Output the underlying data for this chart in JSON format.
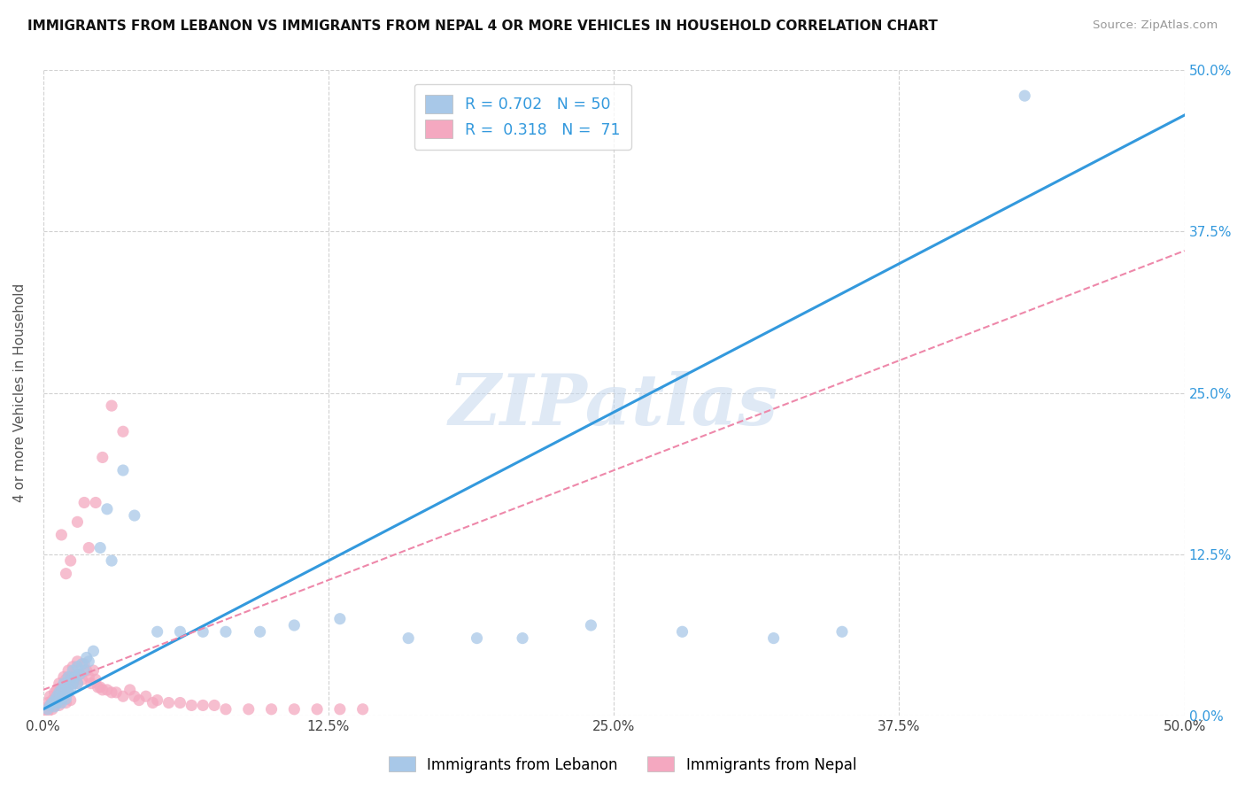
{
  "title": "IMMIGRANTS FROM LEBANON VS IMMIGRANTS FROM NEPAL 4 OR MORE VEHICLES IN HOUSEHOLD CORRELATION CHART",
  "source": "Source: ZipAtlas.com",
  "ylabel": "4 or more Vehicles in Household",
  "xlim": [
    0.0,
    0.5
  ],
  "ylim": [
    0.0,
    0.5
  ],
  "xtick_vals": [
    0.0,
    0.125,
    0.25,
    0.375,
    0.5
  ],
  "xtick_labels": [
    "0.0%",
    "12.5%",
    "25.0%",
    "37.5%",
    "50.0%"
  ],
  "ytick_vals": [
    0.0,
    0.125,
    0.25,
    0.375,
    0.5
  ],
  "ytick_labels_right": [
    "0.0%",
    "12.5%",
    "25.0%",
    "37.5%",
    "50.0%"
  ],
  "lebanon_R": 0.702,
  "lebanon_N": 50,
  "nepal_R": 0.318,
  "nepal_N": 71,
  "lebanon_color": "#a8c8e8",
  "nepal_color": "#f4a8c0",
  "lebanon_line_color": "#3399dd",
  "nepal_line_color": "#ee88aa",
  "right_axis_color": "#3399dd",
  "legend_label_lebanon": "Immigrants from Lebanon",
  "legend_label_nepal": "Immigrants from Nepal",
  "watermark": "ZIPatlas",
  "background_color": "#ffffff",
  "grid_color": "#cccccc",
  "lebanon_line_slope": 0.92,
  "lebanon_line_intercept": 0.005,
  "nepal_line_slope": 0.68,
  "nepal_line_intercept": 0.02,
  "lebanon_x": [
    0.002,
    0.003,
    0.004,
    0.005,
    0.005,
    0.006,
    0.006,
    0.007,
    0.007,
    0.008,
    0.008,
    0.009,
    0.009,
    0.01,
    0.01,
    0.011,
    0.011,
    0.012,
    0.012,
    0.013,
    0.013,
    0.014,
    0.015,
    0.015,
    0.016,
    0.017,
    0.018,
    0.019,
    0.02,
    0.022,
    0.025,
    0.028,
    0.03,
    0.035,
    0.04,
    0.05,
    0.06,
    0.07,
    0.08,
    0.095,
    0.11,
    0.13,
    0.16,
    0.19,
    0.21,
    0.24,
    0.28,
    0.32,
    0.35,
    0.43
  ],
  "lebanon_y": [
    0.005,
    0.008,
    0.01,
    0.007,
    0.012,
    0.01,
    0.015,
    0.012,
    0.018,
    0.01,
    0.02,
    0.015,
    0.025,
    0.013,
    0.022,
    0.018,
    0.03,
    0.02,
    0.028,
    0.025,
    0.035,
    0.03,
    0.025,
    0.038,
    0.032,
    0.04,
    0.035,
    0.045,
    0.042,
    0.05,
    0.13,
    0.16,
    0.12,
    0.19,
    0.155,
    0.065,
    0.065,
    0.065,
    0.065,
    0.065,
    0.07,
    0.075,
    0.06,
    0.06,
    0.06,
    0.07,
    0.065,
    0.06,
    0.065,
    0.48
  ],
  "nepal_x": [
    0.001,
    0.002,
    0.002,
    0.003,
    0.003,
    0.004,
    0.004,
    0.005,
    0.005,
    0.006,
    0.006,
    0.007,
    0.007,
    0.008,
    0.008,
    0.009,
    0.009,
    0.01,
    0.01,
    0.011,
    0.011,
    0.012,
    0.012,
    0.013,
    0.013,
    0.014,
    0.015,
    0.015,
    0.016,
    0.017,
    0.018,
    0.019,
    0.02,
    0.021,
    0.022,
    0.023,
    0.024,
    0.025,
    0.026,
    0.028,
    0.03,
    0.032,
    0.035,
    0.038,
    0.04,
    0.042,
    0.045,
    0.048,
    0.05,
    0.055,
    0.06,
    0.065,
    0.07,
    0.075,
    0.08,
    0.09,
    0.1,
    0.11,
    0.12,
    0.13,
    0.14,
    0.008,
    0.01,
    0.012,
    0.015,
    0.018,
    0.02,
    0.023,
    0.026,
    0.03,
    0.035
  ],
  "nepal_y": [
    0.005,
    0.01,
    0.003,
    0.008,
    0.015,
    0.005,
    0.012,
    0.008,
    0.018,
    0.01,
    0.02,
    0.008,
    0.025,
    0.012,
    0.022,
    0.015,
    0.03,
    0.01,
    0.028,
    0.018,
    0.035,
    0.012,
    0.03,
    0.025,
    0.038,
    0.03,
    0.025,
    0.042,
    0.032,
    0.028,
    0.04,
    0.035,
    0.03,
    0.025,
    0.035,
    0.028,
    0.022,
    0.022,
    0.02,
    0.02,
    0.018,
    0.018,
    0.015,
    0.02,
    0.015,
    0.012,
    0.015,
    0.01,
    0.012,
    0.01,
    0.01,
    0.008,
    0.008,
    0.008,
    0.005,
    0.005,
    0.005,
    0.005,
    0.005,
    0.005,
    0.005,
    0.14,
    0.11,
    0.12,
    0.15,
    0.165,
    0.13,
    0.165,
    0.2,
    0.24,
    0.22
  ]
}
